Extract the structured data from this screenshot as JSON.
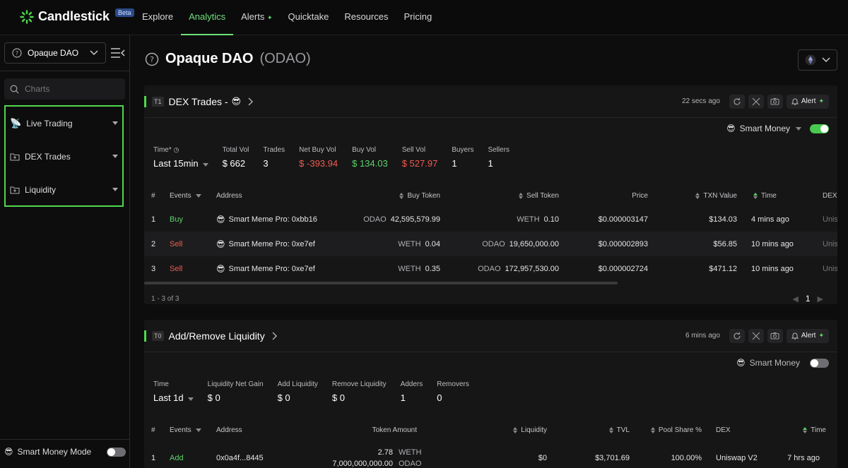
{
  "app": {
    "name": "Candlestick",
    "badge": "Beta"
  },
  "nav": [
    {
      "label": "Explore",
      "active": false
    },
    {
      "label": "Analytics",
      "active": true
    },
    {
      "label": "Alerts",
      "active": false,
      "spark": true
    },
    {
      "label": "Quicktake",
      "active": false
    },
    {
      "label": "Resources",
      "active": false
    },
    {
      "label": "Pricing",
      "active": false
    }
  ],
  "sidebar": {
    "token": "Opaque DAO",
    "search_placeholder": "Charts",
    "sections": [
      "Live Trading",
      "DEX Trades",
      "Liquidity"
    ],
    "smart_money_mode": "Smart Money Mode"
  },
  "page": {
    "title": "Opaque DAO",
    "ticker": "(ODAO)"
  },
  "dex_card": {
    "tag": "T1",
    "title": "DEX Trades -",
    "title_emoji": "😎",
    "ago": "22 secs ago",
    "alert_label": "Alert",
    "smart_money_label": "Smart Money",
    "stats": [
      {
        "k": "Time*",
        "v": "Last 15min",
        "tone": ""
      },
      {
        "k": "Total Vol",
        "v": "$ 662",
        "tone": ""
      },
      {
        "k": "Trades",
        "v": "3",
        "tone": ""
      },
      {
        "k": "Net Buy Vol",
        "v": "$ -393.94",
        "tone": "red"
      },
      {
        "k": "Buy Vol",
        "v": "$ 134.03",
        "tone": "green"
      },
      {
        "k": "Sell Vol",
        "v": "$ 527.97",
        "tone": "red"
      },
      {
        "k": "Buyers",
        "v": "1",
        "tone": ""
      },
      {
        "k": "Sellers",
        "v": "1",
        "tone": ""
      }
    ],
    "headers": {
      "num": "#",
      "events": "Events",
      "address": "Address",
      "buy_token": "Buy Token",
      "sell_token": "Sell Token",
      "price": "Price",
      "txn_value": "TXN Value",
      "time": "Time",
      "dex": "DEX"
    },
    "rows": [
      {
        "num": "1",
        "event": "Buy",
        "address": "Smart Meme Pro: 0xbb16",
        "buy_sym": "ODAO",
        "buy_amt": "42,595,579.99",
        "sell_sym": "WETH",
        "sell_amt": "0.10",
        "price": "$0.000003147",
        "txn": "$134.03",
        "time": "4 mins ago",
        "dex": "Unis"
      },
      {
        "num": "2",
        "event": "Sell",
        "address": "Smart Meme Pro: 0xe7ef",
        "buy_sym": "WETH",
        "buy_amt": "0.04",
        "sell_sym": "ODAO",
        "sell_amt": "19,650,000.00",
        "price": "$0.000002893",
        "txn": "$56.85",
        "time": "10 mins ago",
        "dex": "Unis"
      },
      {
        "num": "3",
        "event": "Sell",
        "address": "Smart Meme Pro: 0xe7ef",
        "buy_sym": "WETH",
        "buy_amt": "0.35",
        "sell_sym": "ODAO",
        "sell_amt": "172,957,530.00",
        "price": "$0.000002724",
        "txn": "$471.12",
        "time": "10 mins ago",
        "dex": "Unis"
      }
    ],
    "pager_info": "1 - 3 of 3",
    "page": "1"
  },
  "liq_card": {
    "tag": "T0",
    "title": "Add/Remove Liquidity",
    "ago": "6 mins ago",
    "alert_label": "Alert",
    "smart_money_label": "Smart Money",
    "stats": [
      {
        "k": "Time",
        "v": "Last 1d",
        "tone": ""
      },
      {
        "k": "Liquidity Net Gain",
        "v": "$ 0",
        "tone": ""
      },
      {
        "k": "Add Liquidity",
        "v": "$ 0",
        "tone": ""
      },
      {
        "k": "Remove Liquidity",
        "v": "$ 0",
        "tone": ""
      },
      {
        "k": "Adders",
        "v": "1",
        "tone": ""
      },
      {
        "k": "Removers",
        "v": "0",
        "tone": ""
      }
    ],
    "headers": {
      "num": "#",
      "events": "Events",
      "address": "Address",
      "token_amount": "Token Amount",
      "liquidity": "Liquidity",
      "tvl": "TVL",
      "pool_share": "Pool Share %",
      "dex": "DEX",
      "time": "Time"
    },
    "rows": [
      {
        "num": "1",
        "event": "Add",
        "address": "0x0a4f...8445",
        "amt1": "2.78",
        "sym1": "WETH",
        "amt2": "7,000,000,000.00",
        "sym2": "ODAO",
        "liquidity": "$0",
        "tvl": "$3,701.69",
        "pool_share": "100.00%",
        "dex": "Uniswap V2",
        "time": "7 hrs ago"
      }
    ]
  }
}
